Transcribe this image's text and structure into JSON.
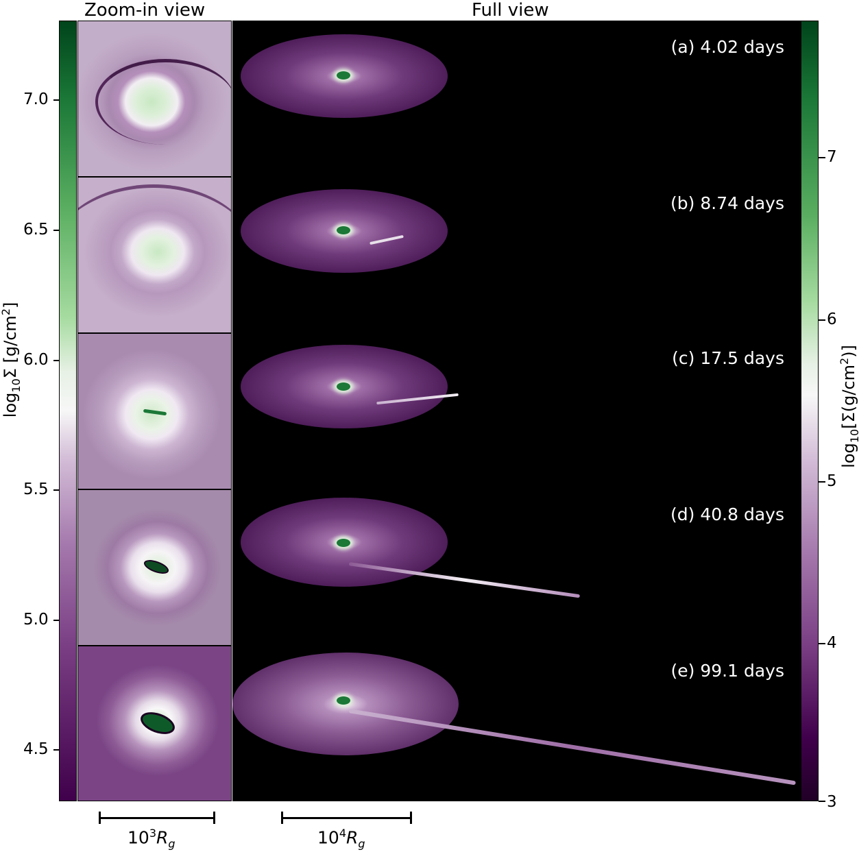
{
  "headers": {
    "zoom": "Zoom-in view",
    "full": "Full view"
  },
  "left_colorbar": {
    "label_prefix": "log",
    "label_sub": "10",
    "label_mid": "Σ [g/cm",
    "label_sup": "2",
    "label_end": "]",
    "ticks": [
      "7.0",
      "6.5",
      "6.0",
      "5.5",
      "5.0",
      "4.5"
    ]
  },
  "right_colorbar": {
    "label_prefix": "log",
    "label_sub": "10",
    "label_mid": "[Σ(g/cm",
    "label_sup": "2",
    "label_end": ")]",
    "ticks": [
      "7",
      "6",
      "5",
      "4",
      "3"
    ]
  },
  "panels": [
    {
      "label": "(a) 4.02 days"
    },
    {
      "label": "(b) 8.74 days"
    },
    {
      "label": "(c) 17.5 days"
    },
    {
      "label": "(d) 40.8 days"
    },
    {
      "label": "(e) 99.1 days"
    }
  ],
  "scalebars": {
    "zoom": {
      "base": "10",
      "exp": "3",
      "unit": "R",
      "sub": "g"
    },
    "full": {
      "base": "10",
      "exp": "4",
      "unit": "R",
      "sub": "g"
    }
  },
  "colors": {
    "dark_purple": "#2a0030",
    "mid_purple": "#8a4e93",
    "light_purple": "#c6a6cd",
    "white": "#f4eef4",
    "light_green": "#a7dba0",
    "dark_green": "#1b7837"
  }
}
